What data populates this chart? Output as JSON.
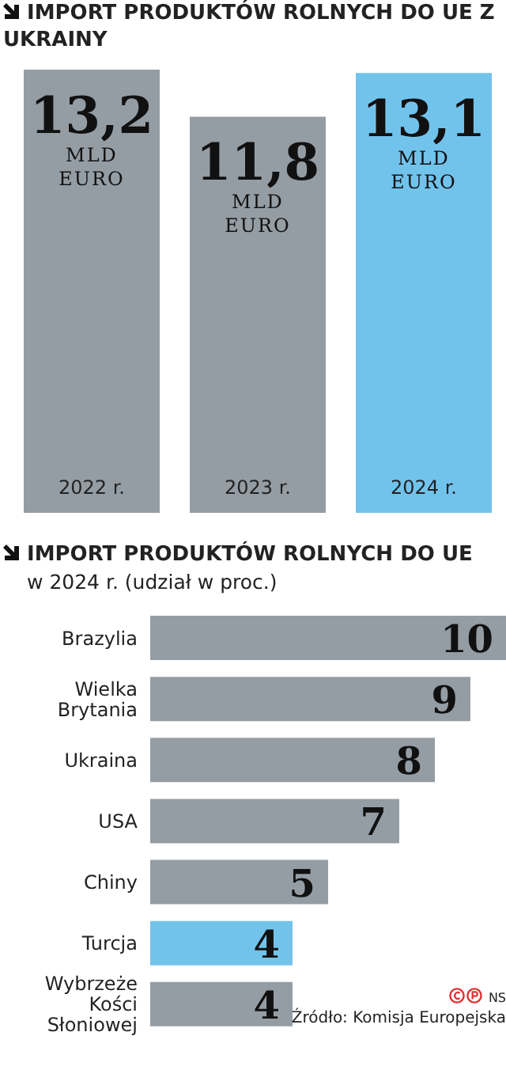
{
  "chart_data": [
    {
      "type": "bar",
      "title": "IMPORT PRODUKTÓW ROLNYCH DO UE Z UKRAINY",
      "categories": [
        "2022 r.",
        "2023 r.",
        "2024 r."
      ],
      "values": [
        13.2,
        11.8,
        13.1
      ],
      "colors": [
        "#959da4",
        "#959da4",
        "#72c3ec"
      ],
      "value_labels": [
        "13,2 MLD EURO",
        "11,8 MLD EURO",
        "13,1 MLD EURO"
      ]
    },
    {
      "type": "bar",
      "orientation": "horizontal",
      "title": "IMPORT PRODUKTÓW ROLNYCH DO UE",
      "subtitle": "w 2024 r. (udział w proc.)",
      "categories": [
        "Brazylia",
        "Wielka Brytania",
        "Ukraina",
        "USA",
        "Chiny",
        "Turcja",
        "Wybrzeże Kości Słoniowej"
      ],
      "values": [
        10,
        9,
        8,
        7,
        5,
        4,
        4
      ],
      "colors": [
        "#959da4",
        "#959da4",
        "#959da4",
        "#959da4",
        "#959da4",
        "#72c3ec",
        "#959da4"
      ],
      "data_labels": true,
      "annotations": [
        "NS",
        "Źródło: Komisja Europejska"
      ]
    }
  ]
}
